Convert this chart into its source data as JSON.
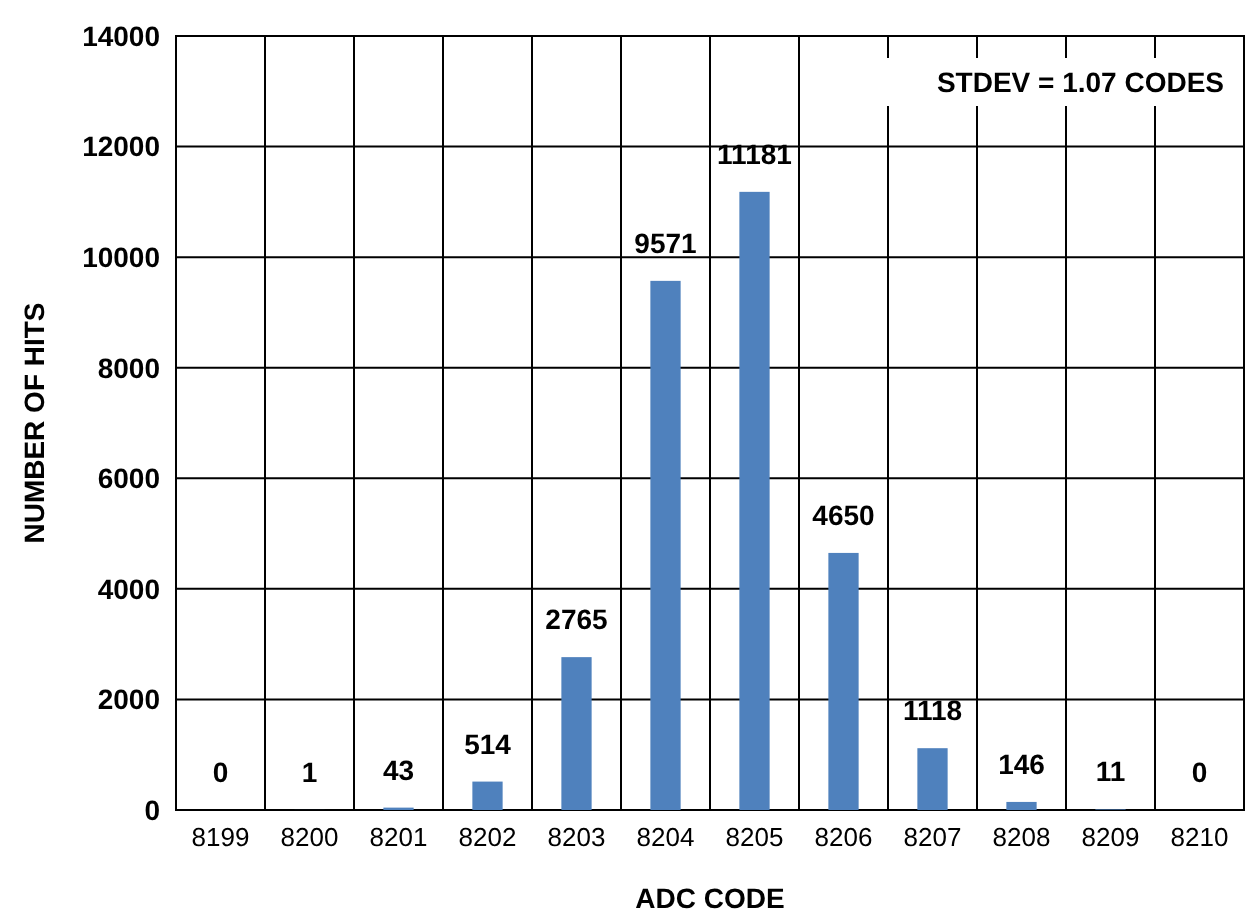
{
  "chart_data": {
    "type": "bar",
    "xlabel": "ADC CODE",
    "ylabel": "NUMBER OF HITS",
    "categories": [
      "8199",
      "8200",
      "8201",
      "8202",
      "8203",
      "8204",
      "8205",
      "8206",
      "8207",
      "8208",
      "8209",
      "8210"
    ],
    "values": [
      0,
      1,
      43,
      514,
      2765,
      9571,
      11181,
      4650,
      1118,
      146,
      11,
      0
    ],
    "color": "#4f81bd",
    "data_labels": true,
    "grid": true,
    "ylim": [
      0,
      14000
    ],
    "yticks": [
      0,
      2000,
      4000,
      6000,
      8000,
      10000,
      12000,
      14000
    ],
    "annotations": [
      "STDEV = 1.07 CODES"
    ]
  }
}
